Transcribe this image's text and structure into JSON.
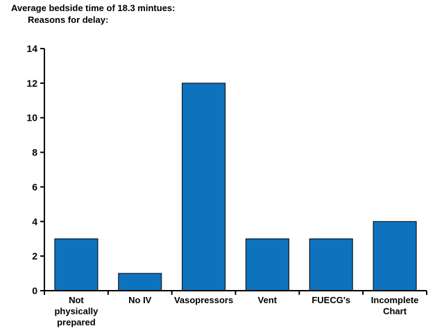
{
  "chart_data": {
    "type": "bar",
    "title_lines": [
      "Average bedside time of 18.3 mintues:",
      "Reasons for delay:"
    ],
    "categories": [
      [
        "Not",
        "physically",
        "prepared"
      ],
      [
        "No IV"
      ],
      [
        "Vasopressors"
      ],
      [
        "Vent"
      ],
      [
        "FUECG's"
      ],
      [
        "Incomplete",
        "Chart"
      ]
    ],
    "values": [
      3,
      1,
      12,
      3,
      3,
      4
    ],
    "ylim": [
      0,
      14
    ],
    "yticks": [
      0,
      2,
      4,
      6,
      8,
      10,
      12,
      14
    ],
    "bar_color": "#0f72bd",
    "bar_stroke": "#000000",
    "grid": false,
    "legend": "none"
  }
}
